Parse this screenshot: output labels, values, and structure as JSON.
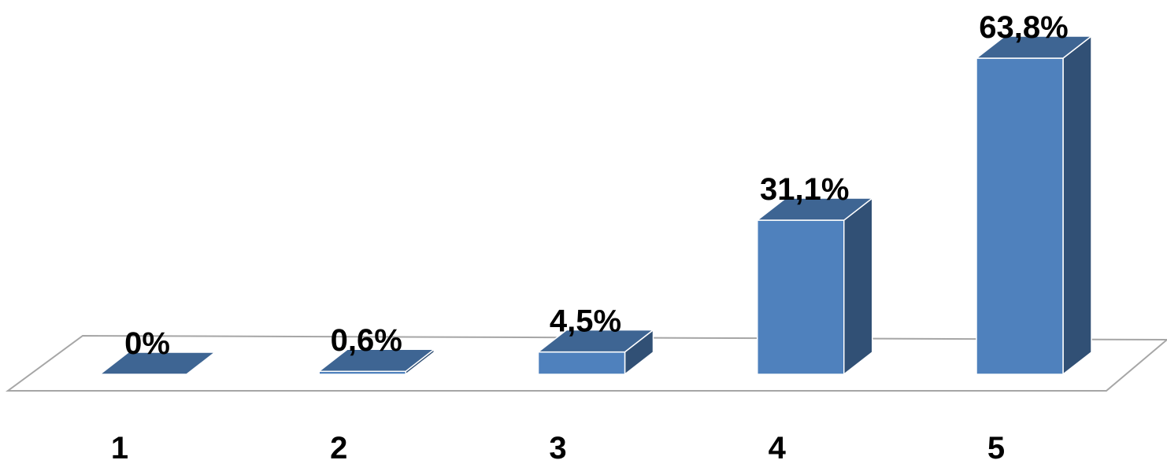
{
  "chart_data": {
    "type": "bar3d",
    "categories": [
      "1",
      "2",
      "3",
      "4",
      "5"
    ],
    "values": [
      0,
      0.6,
      4.5,
      31.1,
      63.8
    ],
    "value_labels": [
      "0%",
      "0,6%",
      "4,5%",
      "31,1%",
      "63,8%"
    ],
    "color": "#4f81bd"
  }
}
